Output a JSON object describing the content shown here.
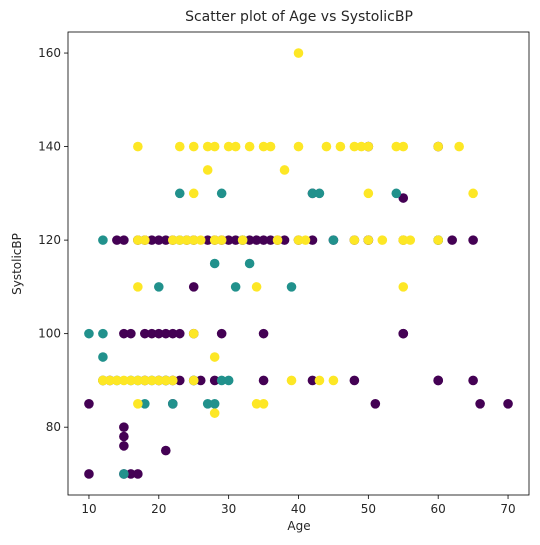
{
  "chart_data": {
    "type": "scatter",
    "title": "Scatter plot of Age vs SystolicBP",
    "xlabel": "Age",
    "ylabel": "SystolicBP",
    "xlim": [
      7.0,
      73.0
    ],
    "ylim": [
      65.5,
      164.5
    ],
    "xticks": [
      10,
      20,
      30,
      40,
      50,
      60,
      70
    ],
    "yticks": [
      80,
      100,
      120,
      140,
      160
    ],
    "grid": false,
    "legend": "none",
    "colors": {
      "purple": "#440154",
      "teal": "#21918c",
      "yellow": "#fde725"
    },
    "series": [
      {
        "color": "#440154",
        "x": [
          10,
          10,
          12,
          13,
          14,
          15,
          15,
          15,
          15,
          15,
          15,
          16,
          16,
          17,
          17,
          18,
          18,
          18,
          19,
          19,
          20,
          20,
          20,
          21,
          21,
          21,
          21,
          22,
          22,
          22,
          22,
          23,
          23,
          24,
          25,
          25,
          25,
          25,
          26,
          27,
          28,
          28,
          29,
          29,
          30,
          31,
          32,
          33,
          34,
          35,
          35,
          35,
          36,
          37,
          38,
          40,
          42,
          42,
          42,
          45,
          48,
          48,
          50,
          50,
          50,
          51,
          55,
          55,
          55,
          55,
          60,
          60,
          60,
          60,
          62,
          65,
          65,
          66,
          70
        ],
        "y": [
          70,
          85,
          90,
          90,
          120,
          70,
          76,
          78,
          80,
          100,
          120,
          70,
          100,
          70,
          120,
          90,
          100,
          120,
          100,
          120,
          90,
          100,
          120,
          75,
          90,
          100,
          120,
          90,
          100,
          120,
          85,
          90,
          100,
          120,
          90,
          100,
          110,
          120,
          90,
          120,
          120,
          90,
          100,
          120,
          120,
          120,
          120,
          120,
          120,
          90,
          100,
          120,
          120,
          120,
          120,
          120,
          90,
          120,
          130,
          120,
          120,
          90,
          120,
          120,
          140,
          85,
          100,
          120,
          129,
          100,
          90,
          120,
          140,
          90,
          120,
          90,
          120,
          85,
          85
        ]
      },
      {
        "color": "#21918c",
        "x": [
          10,
          12,
          12,
          12,
          12,
          14,
          15,
          16,
          17,
          18,
          19,
          20,
          21,
          22,
          23,
          23,
          25,
          27,
          28,
          28,
          29,
          29,
          30,
          31,
          32,
          33,
          39,
          42,
          43,
          45,
          54,
          60
        ],
        "y": [
          100,
          90,
          95,
          100,
          120,
          90,
          70,
          90,
          90,
          85,
          90,
          110,
          90,
          85,
          120,
          130,
          90,
          85,
          85,
          115,
          90,
          130,
          90,
          110,
          120,
          115,
          110,
          130,
          130,
          120,
          130,
          120
        ]
      },
      {
        "color": "#fde725",
        "x": [
          12,
          12,
          13,
          14,
          15,
          16,
          17,
          17,
          17,
          17,
          17,
          18,
          18,
          19,
          20,
          21,
          22,
          22,
          23,
          23,
          24,
          25,
          25,
          25,
          25,
          25,
          26,
          27,
          27,
          28,
          28,
          28,
          28,
          29,
          30,
          31,
          32,
          33,
          34,
          34,
          35,
          35,
          36,
          37,
          38,
          39,
          40,
          40,
          40,
          41,
          43,
          44,
          45,
          46,
          48,
          48,
          49,
          50,
          50,
          50,
          52,
          54,
          55,
          55,
          55,
          55,
          56,
          60,
          60,
          63,
          65
        ],
        "y": [
          90,
          90,
          90,
          90,
          90,
          90,
          85,
          90,
          110,
          120,
          140,
          90,
          120,
          90,
          90,
          90,
          90,
          120,
          120,
          140,
          120,
          90,
          100,
          120,
          130,
          140,
          120,
          135,
          140,
          83,
          95,
          120,
          140,
          120,
          140,
          140,
          120,
          140,
          85,
          110,
          85,
          140,
          140,
          120,
          135,
          90,
          140,
          120,
          160,
          120,
          90,
          140,
          90,
          140,
          120,
          140,
          140,
          120,
          130,
          140,
          120,
          140,
          110,
          120,
          140,
          120,
          120,
          140,
          120,
          140,
          130
        ]
      }
    ]
  }
}
